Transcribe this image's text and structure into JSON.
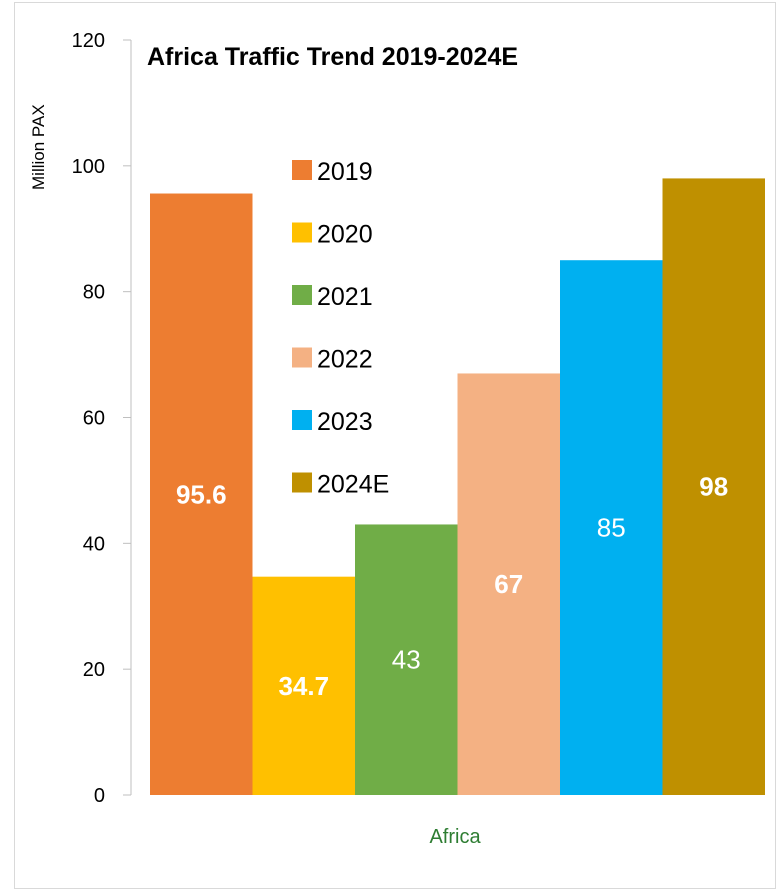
{
  "chart_data": {
    "type": "bar",
    "title": "Africa Traffic Trend 2019-2024E",
    "ylabel": "Million PAX",
    "xlabel": "",
    "categories": [
      "Africa"
    ],
    "ylim": [
      0,
      120
    ],
    "yticks": [
      0,
      20,
      40,
      60,
      80,
      100,
      120
    ],
    "legend_position": "top-left inside plot",
    "grid": false,
    "series": [
      {
        "name": "2019",
        "values": [
          95.6
        ],
        "label": "95.6",
        "label_bold": true,
        "color": "#ED7D31"
      },
      {
        "name": "2020",
        "values": [
          34.7
        ],
        "label": "34.7",
        "label_bold": true,
        "color": "#FFC000"
      },
      {
        "name": "2021",
        "values": [
          43
        ],
        "label": "43",
        "label_bold": false,
        "color": "#70AD47"
      },
      {
        "name": "2022",
        "values": [
          67
        ],
        "label": "67",
        "label_bold": true,
        "color": "#F4B183"
      },
      {
        "name": "2023",
        "values": [
          85
        ],
        "label": "85",
        "label_bold": false,
        "color": "#00B0F0"
      },
      {
        "name": "2024E",
        "values": [
          98
        ],
        "label": "98",
        "label_bold": true,
        "color": "#BF9000"
      }
    ]
  }
}
